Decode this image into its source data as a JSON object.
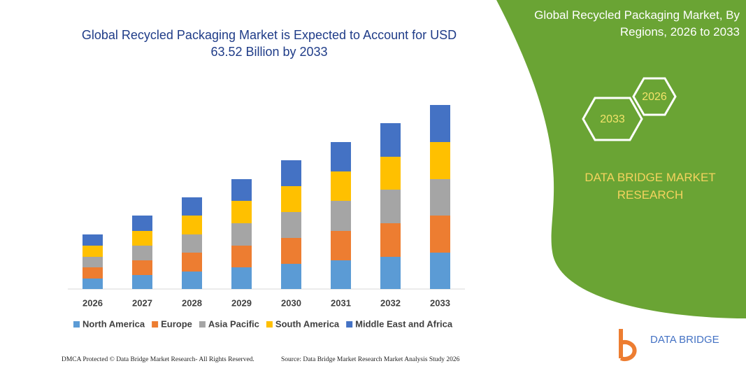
{
  "chart_data": {
    "type": "bar",
    "stacked": true,
    "title": "Global Recycled Packaging Market is Expected to Account for USD 63.52 Billion by 2033",
    "categories": [
      "2026",
      "2027",
      "2028",
      "2029",
      "2030",
      "2031",
      "2032",
      "2033"
    ],
    "series": [
      {
        "name": "North America",
        "color": "#5b9bd5",
        "values": [
          15,
          20,
          25,
          31,
          36,
          41,
          46,
          52
        ]
      },
      {
        "name": "Europe",
        "color": "#ed7d31",
        "values": [
          16,
          21,
          27,
          31,
          37,
          42,
          48,
          53
        ]
      },
      {
        "name": "Asia Pacific",
        "color": "#a5a5a5",
        "values": [
          15,
          21,
          26,
          32,
          37,
          43,
          48,
          52
        ]
      },
      {
        "name": "South America",
        "color": "#ffc000",
        "values": [
          16,
          21,
          27,
          32,
          37,
          42,
          47,
          53
        ]
      },
      {
        "name": "Middle East and Africa",
        "color": "#4472c4",
        "values": [
          16,
          22,
          26,
          31,
          37,
          42,
          48,
          53
        ]
      }
    ],
    "ylim": [
      0,
      270
    ]
  },
  "panel": {
    "title": "Global Recycled Packaging Market, By Regions, 2026 to 2033",
    "hexagons": [
      "2026",
      "2033"
    ],
    "brand": "DATA BRIDGE MARKET RESEARCH",
    "logo": "DATA BRIDGE"
  },
  "footer": {
    "left": "DMCA Protected © Data Bridge Market Research- All Rights Reserved.",
    "right": "Source: Data Bridge Market Research  Market Analysis Study 2026"
  }
}
